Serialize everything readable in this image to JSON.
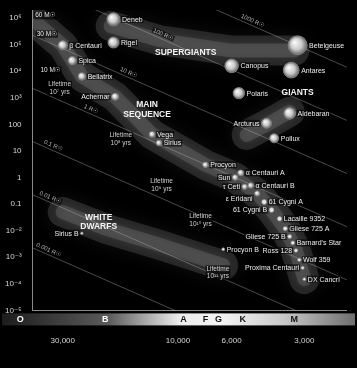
{
  "chart_data": {
    "type": "scatter",
    "log": true,
    "grid": false,
    "color": "#e6e6e6",
    "xlim": [
      40000,
      2000
    ],
    "xticks": [
      {
        "value": 30000,
        "label": "30,000"
      },
      {
        "value": 10000,
        "label": "10,000"
      },
      {
        "value": 6000,
        "label": "6,000"
      },
      {
        "value": 3000,
        "label": "3,000"
      }
    ],
    "ylim": [
      1e-05,
      2000000
    ],
    "yticks": [
      {
        "value": 1000000,
        "label": "10⁶"
      },
      {
        "value": 100000,
        "label": "10⁵"
      },
      {
        "value": 10000,
        "label": "10⁴"
      },
      {
        "value": 1000,
        "label": "10³"
      },
      100,
      10,
      1,
      0.1,
      {
        "value": 0.01,
        "label": "10⁻²"
      },
      {
        "value": 0.001,
        "label": "10⁻³"
      },
      {
        "value": 0.0001,
        "label": "10⁻⁴"
      },
      {
        "value": 1e-05,
        "label": "10⁻⁵"
      }
    ],
    "spectral_classes": [
      {
        "label": "O",
        "x": 45000
      },
      {
        "label": "B",
        "x": 20000
      },
      {
        "label": "A",
        "x": 9500
      },
      {
        "label": "F",
        "x": 7700
      },
      {
        "label": "G",
        "x": 6800
      },
      {
        "label": "K",
        "x": 5400
      },
      {
        "label": "M",
        "x": 3300
      }
    ],
    "stars": [
      {
        "label": "Deneb",
        "x": 18500,
        "y": 900000
      },
      {
        "label": "Rigel",
        "x": 18500,
        "y": 120000
      },
      {
        "label": "β Centauri",
        "x": 30000,
        "y": 95000
      },
      {
        "label": "Spica",
        "x": 27400,
        "y": 25000
      },
      {
        "label": "Bellatrix",
        "x": 25000,
        "y": 6400
      },
      {
        "label": "Achernar",
        "x": 18200,
        "y": 1100
      },
      {
        "label": "Canopus",
        "x": 6000,
        "y": 16000
      },
      {
        "label": "Polaris",
        "x": 5600,
        "y": 1500
      },
      {
        "label": "Betelgeuse",
        "x": 3200,
        "y": 95000
      },
      {
        "label": "Antares",
        "x": 3400,
        "y": 11000
      },
      {
        "label": "Aldebaran",
        "x": 3450,
        "y": 260
      },
      {
        "label": "Arcturus",
        "x": 4300,
        "y": 110
      },
      {
        "label": "Pollux",
        "x": 4000,
        "y": 30
      },
      {
        "label": "Vega",
        "x": 12800,
        "y": 42
      },
      {
        "label": "Sirius",
        "x": 12000,
        "y": 20
      },
      {
        "label": "Procyon",
        "x": 7700,
        "y": 3
      },
      {
        "label": "α Centauri A",
        "x": 5500,
        "y": 1.5
      },
      {
        "label": "Sun",
        "x": 5800,
        "y": 1
      },
      {
        "label": "τ Ceti",
        "x": 5300,
        "y": 0.45
      },
      {
        "label": "α Centauri B",
        "x": 5000,
        "y": 0.5
      },
      {
        "label": "ε Eridani",
        "x": 4700,
        "y": 0.25
      },
      {
        "label": "61 Cygni A",
        "x": 4400,
        "y": 0.12
      },
      {
        "label": "61 Cygni B",
        "x": 4100,
        "y": 0.06
      },
      {
        "label": "Lacaille 9352",
        "x": 3800,
        "y": 0.028
      },
      {
        "label": "Gliese 725 A",
        "x": 3600,
        "y": 0.012
      },
      {
        "label": "Gliese 725 B",
        "x": 3450,
        "y": 0.006
      },
      {
        "label": "Barnard's Star",
        "x": 3350,
        "y": 0.0035
      },
      {
        "label": "Ross 128",
        "x": 3250,
        "y": 0.0018
      },
      {
        "label": "Wolf 359",
        "x": 3150,
        "y": 0.0008
      },
      {
        "label": "Proxima Centauri",
        "x": 3050,
        "y": 0.0004
      },
      {
        "label": "DX Cancri",
        "x": 3000,
        "y": 0.00015
      },
      {
        "label": "Sirius B",
        "x": 25000,
        "y": 0.008
      },
      {
        "label": "Procyon B",
        "x": 6500,
        "y": 0.002
      }
    ],
    "regions": [
      {
        "label": "SUPERGIANTS",
        "x": 9290,
        "y": 51000,
        "path": [
          [
            19000,
            500000
          ],
          [
            12000,
            150000
          ],
          [
            6000,
            60000
          ],
          [
            3300,
            60000
          ]
        ]
      },
      {
        "label": "GIANTS",
        "x": 3200,
        "y": 1500,
        "path": [
          [
            5200,
            40
          ],
          [
            4200,
            110
          ],
          [
            3450,
            300
          ]
        ]
      },
      {
        "label": "MAIN SEQUENCE",
        "x": 13430,
        "y": 361,
        "path": [
          [
            38000,
            600000
          ],
          [
            30000,
            95000
          ],
          [
            25000,
            6400
          ],
          [
            18200,
            1100
          ],
          [
            12800,
            42
          ],
          [
            7700,
            3
          ],
          [
            5800,
            1
          ],
          [
            4700,
            0.25
          ],
          [
            4100,
            0.06
          ],
          [
            3600,
            0.012
          ],
          [
            3250,
            0.0018
          ],
          [
            3000,
            0.00015
          ]
        ]
      },
      {
        "label": "WHITE DWARFS",
        "x": 21300,
        "y": 0.021,
        "path": [
          [
            30000,
            0.05
          ],
          [
            20000,
            0.012
          ],
          [
            12000,
            0.003
          ],
          [
            6500,
            0.0005
          ]
        ]
      }
    ],
    "lifetimes": [
      {
        "label": "Lifetime 10⁷ yrs",
        "x": 30900,
        "y": 2260
      },
      {
        "label": "Lifetime 10⁸ yrs",
        "x": 17250,
        "y": 28
      },
      {
        "label": "Lifetime 10⁹ yrs",
        "x": 11700,
        "y": 0.52
      },
      {
        "label": "Lifetime 10¹⁰ yrs",
        "x": 8070,
        "y": 0.025
      },
      {
        "label": "Lifetime 10¹¹ yrs",
        "x": 6840,
        "y": 0.00026
      }
    ],
    "masses": [
      {
        "label": "60 M☉",
        "x": 35400,
        "y": 1240000
      },
      {
        "label": "30 M☉",
        "x": 34900,
        "y": 250000
      },
      {
        "label": "10 M☉",
        "x": 33700,
        "y": 11200
      }
    ],
    "radius_lines": [
      {
        "label": "1000 R☉",
        "points": [
          [
            40000,
            2260000000
          ],
          [
            2000,
            14100
          ]
        ]
      },
      {
        "label": "100 R☉",
        "points": [
          [
            40000,
            22600000
          ],
          [
            2000,
            141
          ]
        ]
      },
      {
        "label": "10 R☉",
        "points": [
          [
            40000,
            226000
          ],
          [
            2000,
            1.41
          ]
        ]
      },
      {
        "label": "1 R☉",
        "points": [
          [
            40000,
            2260
          ],
          [
            2000,
            0.0141
          ]
        ]
      },
      {
        "label": "0.1 R☉",
        "points": [
          [
            40000,
            22.6
          ],
          [
            2000,
            0.000141
          ]
        ]
      },
      {
        "label": "0.01 R☉",
        "points": [
          [
            40000,
            0.226
          ],
          [
            2000,
            1.41e-06
          ]
        ]
      },
      {
        "label": "0.001 R☉",
        "points": [
          [
            40000,
            0.00226
          ],
          [
            2000,
            1.41e-08
          ]
        ]
      }
    ]
  }
}
